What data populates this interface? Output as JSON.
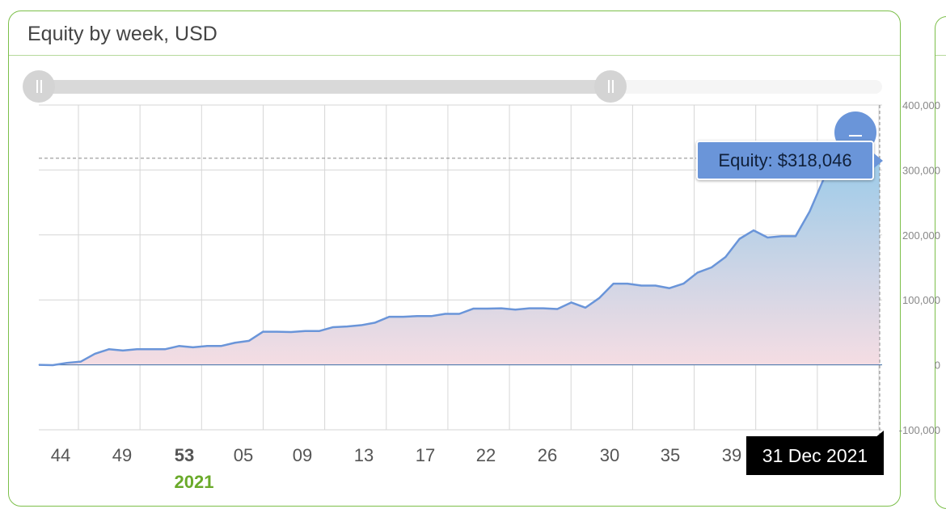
{
  "card": {
    "title": "Equity by week, USD"
  },
  "tooltip": {
    "text": "Equity: $318,046"
  },
  "crosshair": {
    "date_label": "31 Dec 2021"
  },
  "colors": {
    "line": "#6a95d9",
    "area_top": "#9ccbe9",
    "area_bottom": "#f5dde3",
    "grid": "#d6d6d6",
    "zero_line": "#3f6fa8",
    "year_label": "#6aaa2a",
    "card_border": "#7cbf4a"
  },
  "icons": {
    "zoom": "zoom-out-icon",
    "slider_handle": "grip-icon"
  },
  "chart_data": {
    "type": "area",
    "title": "Equity by week, USD",
    "x_tick_labels": [
      "44",
      "49",
      "53",
      "05",
      "09",
      "13",
      "17",
      "22",
      "26",
      "30",
      "35",
      "39"
    ],
    "x_year_label": "2021",
    "y_ticks": [
      400000,
      300000,
      200000,
      100000,
      0,
      -100000
    ],
    "y_tick_labels": [
      "400,000",
      "300,000",
      "200,000",
      "100,000",
      "0",
      "-100,000"
    ],
    "ylim": [
      -100000,
      400000
    ],
    "grid": true,
    "series": [
      {
        "name": "Equity",
        "values": [
          0,
          -500,
          3000,
          5000,
          17000,
          24000,
          22000,
          24000,
          24000,
          24000,
          29000,
          27000,
          29000,
          29000,
          34000,
          37000,
          51000,
          51000,
          50500,
          52000,
          52000,
          58000,
          59000,
          61000,
          65000,
          74000,
          74000,
          75000,
          75000,
          78500,
          78500,
          86500,
          86500,
          87000,
          85000,
          87000,
          87000,
          86000,
          96000,
          88000,
          103000,
          125000,
          125000,
          122000,
          122000,
          118000,
          125000,
          142000,
          150000,
          166000,
          194000,
          207000,
          196000,
          198000,
          198000,
          236000,
          286000,
          307000,
          313000,
          316000,
          318046
        ]
      }
    ],
    "highlight": {
      "x_label": "31 Dec 2021",
      "value": 318046
    }
  }
}
